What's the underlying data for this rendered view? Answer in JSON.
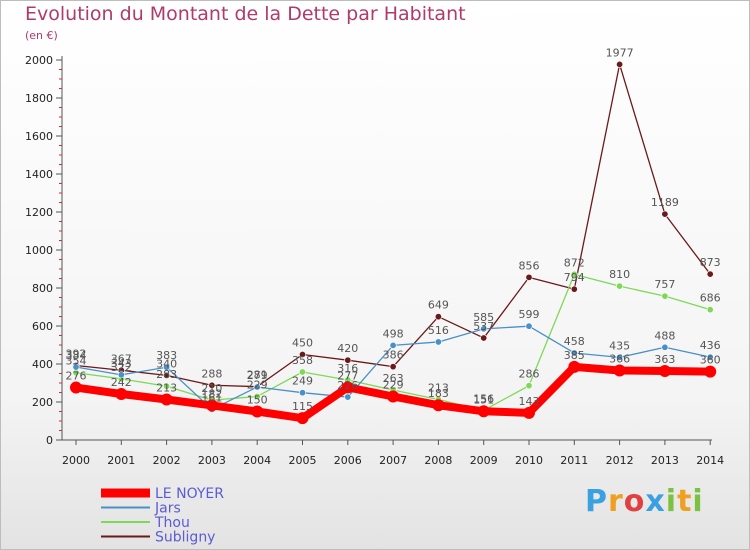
{
  "page": {
    "title": "Evolution du Montant de la Dette par Habitant",
    "unit": "(en €)",
    "brand": "Proxiti"
  },
  "chart_data": {
    "type": "line",
    "title": "Evolution du Montant de la Dette par Habitant",
    "subtitle": "(en €)",
    "xlabel": "",
    "ylabel": "",
    "ylim": [
      0,
      2000
    ],
    "yticks": [
      0,
      200,
      400,
      600,
      800,
      1000,
      1200,
      1400,
      1600,
      1800,
      2000
    ],
    "grid": false,
    "legend_position": "bottom-left",
    "x": [
      "2000",
      "2001",
      "2002",
      "2003",
      "2004",
      "2005",
      "2006",
      "2007",
      "2008",
      "2009",
      "2010",
      "2011",
      "2012",
      "2013",
      "2014"
    ],
    "series": [
      {
        "name": "LE NOYER",
        "color": "#ff0000",
        "values": [
          276,
          242,
          213,
          182,
          150,
          115,
          277,
          229,
          183,
          151,
          143,
          385,
          366,
          363,
          360
        ]
      },
      {
        "name": "Jars",
        "color": "#4a90c8",
        "values": [
          384,
          343,
          383,
          161,
          279,
          249,
          226,
          498,
          516,
          585,
          599,
          458,
          435,
          488,
          436
        ]
      },
      {
        "name": "Thou",
        "color": "#7ed957",
        "values": [
          354,
          322,
          283,
          210,
          229,
          358,
          316,
          263,
          213,
          156,
          286,
          872,
          810,
          757,
          686
        ]
      },
      {
        "name": "Subligny",
        "color": "#6b1a1a",
        "values": [
          392,
          367,
          340,
          288,
          281,
          450,
          420,
          386,
          649,
          537,
          856,
          794,
          1977,
          1189,
          873
        ]
      }
    ]
  }
}
